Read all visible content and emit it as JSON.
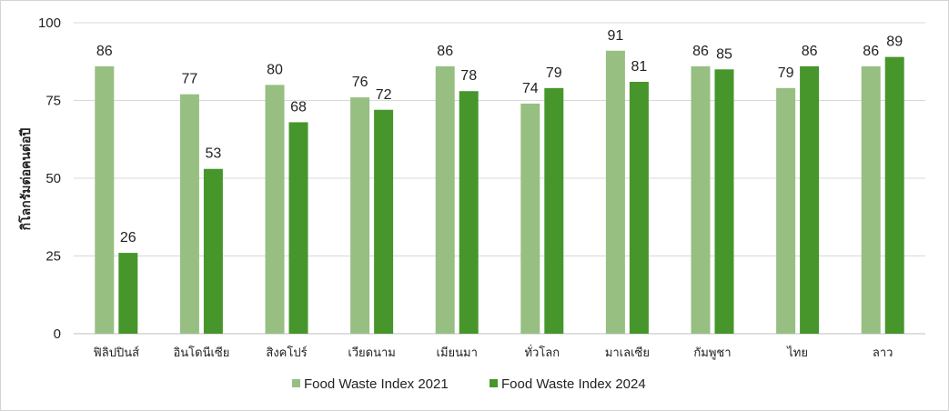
{
  "chart_data": {
    "type": "bar",
    "title": "",
    "xlabel": "",
    "ylabel": "กิโลกรัมต่อคนต่อปี",
    "ylim": [
      0,
      100
    ],
    "yticks": [
      0,
      25,
      50,
      75,
      100
    ],
    "grid": true,
    "legend_position": "bottom",
    "categories": [
      "ฟิลิปปินส์",
      "อินโดนีเซีย",
      "สิงคโปร์",
      "เวียดนาม",
      "เมียนมา",
      "ทั่วโลก",
      "มาเลเซีย",
      "กัมพูชา",
      "ไทย",
      "ลาว"
    ],
    "series": [
      {
        "name": "Food Waste Index 2021",
        "color": "#97bf82",
        "values": [
          86,
          77,
          80,
          76,
          86,
          74,
          91,
          86,
          79,
          86
        ]
      },
      {
        "name": "Food Waste Index 2024",
        "color": "#46962b",
        "values": [
          26,
          53,
          68,
          72,
          78,
          79,
          81,
          85,
          86,
          89
        ]
      }
    ]
  }
}
